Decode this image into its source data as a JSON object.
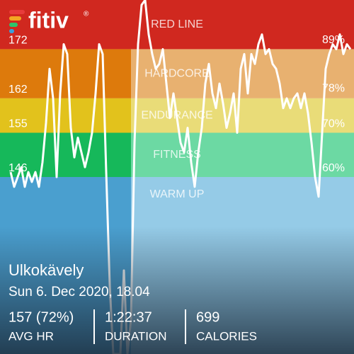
{
  "app": {
    "logo": "fitiv",
    "logo_mark": "®"
  },
  "chart_data": {
    "type": "line",
    "values": [
      147,
      144,
      146,
      148,
      144,
      147,
      145,
      147,
      144,
      149,
      157,
      168,
      162,
      146,
      163,
      173,
      171,
      156,
      150,
      154,
      151,
      148,
      151,
      155,
      163,
      173,
      171,
      147,
      124,
      110,
      110,
      110,
      127,
      110,
      117,
      153,
      173,
      181,
      182,
      175,
      171,
      168,
      169,
      172,
      165,
      158,
      163,
      158,
      153,
      151,
      156,
      149,
      144,
      151,
      156,
      165,
      169,
      163,
      160,
      165,
      161,
      156,
      159,
      163,
      155,
      168,
      171,
      163,
      171,
      169,
      173,
      175,
      171,
      172,
      169,
      168,
      165,
      160,
      162,
      160,
      162,
      163,
      160,
      163,
      159,
      153,
      146,
      142,
      155,
      168,
      171,
      173,
      172,
      175,
      171,
      173,
      172
    ],
    "color": "#ffffff",
    "ylim": [
      110,
      182
    ],
    "yticks": [
      172,
      162,
      155,
      146
    ],
    "y2lim": [
      20,
      100
    ],
    "y2ticks": [
      {
        "value": 89,
        "label": "89%"
      },
      {
        "value": 78,
        "label": "78%"
      },
      {
        "value": 70,
        "label": "70%"
      },
      {
        "value": 60,
        "label": "60%"
      }
    ],
    "zones": [
      {
        "name": "RED LINE",
        "color": "#d0281f",
        "light_color": "#d0281f"
      },
      {
        "name": "HARDCORE",
        "color": "#dd7a0c",
        "light_color": "#e8b170"
      },
      {
        "name": "ENDURANCE",
        "color": "#e2c21c",
        "light_color": "#e9dc78"
      },
      {
        "name": "FITNESS",
        "color": "#16b85a",
        "light_color": "#6cd9a3"
      },
      {
        "name": "WARM UP",
        "color": "#4a9fcf",
        "light_color": "#95cbe7"
      }
    ]
  },
  "workout": {
    "title": "Ulkokävely",
    "date": "Sun 6. Dec 2020, 18.04",
    "stats": [
      {
        "value": "157 (72%)",
        "label": "AVG HR"
      },
      {
        "value": "1:22:37",
        "label": "DURATION"
      },
      {
        "value": "699",
        "label": "CALORIES"
      }
    ]
  }
}
